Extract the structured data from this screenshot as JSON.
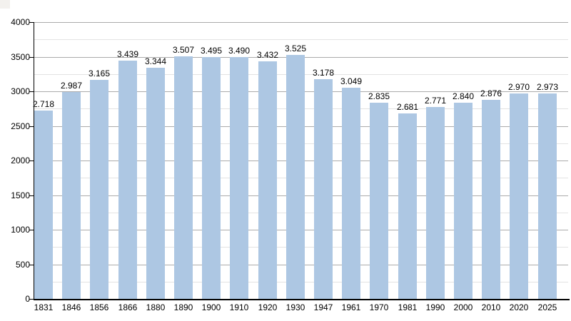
{
  "chart_data": {
    "type": "bar",
    "title": "",
    "xlabel": "",
    "ylabel": "",
    "categories": [
      "1831",
      "1846",
      "1856",
      "1866",
      "1880",
      "1890",
      "1900",
      "1910",
      "1920",
      "1930",
      "1947",
      "1961",
      "1970",
      "1981",
      "1990",
      "2000",
      "2010",
      "2020",
      "2025"
    ],
    "values": [
      2718,
      2987,
      3165,
      3439,
      3344,
      3507,
      3495,
      3490,
      3432,
      3525,
      3178,
      3049,
      2835,
      2681,
      2771,
      2840,
      2876,
      2970,
      2973
    ],
    "value_labels": [
      "2.718",
      "2.987",
      "3.165",
      "3.439",
      "3.344",
      "3.507",
      "3.495",
      "3.490",
      "3.432",
      "3.525",
      "3.178",
      "3.049",
      "2.835",
      "2.681",
      "2.771",
      "2.840",
      "2.876",
      "2.970",
      "2.973"
    ],
    "ylim": [
      0,
      4000
    ],
    "y_major_ticks": [
      0,
      500,
      1000,
      1500,
      2000,
      2500,
      3000,
      3500,
      4000
    ],
    "y_major_step": 500,
    "y_minor_step": 250,
    "grid": "on",
    "legend": "none",
    "colors": {
      "bar_fill": "#adc7e3",
      "major_grid": "#ababab",
      "minor_grid": "#e3e3e3",
      "axis": "#000000",
      "text": "#000000",
      "corner_artifact": "#f3f1ee",
      "background": "#ffffff"
    }
  }
}
